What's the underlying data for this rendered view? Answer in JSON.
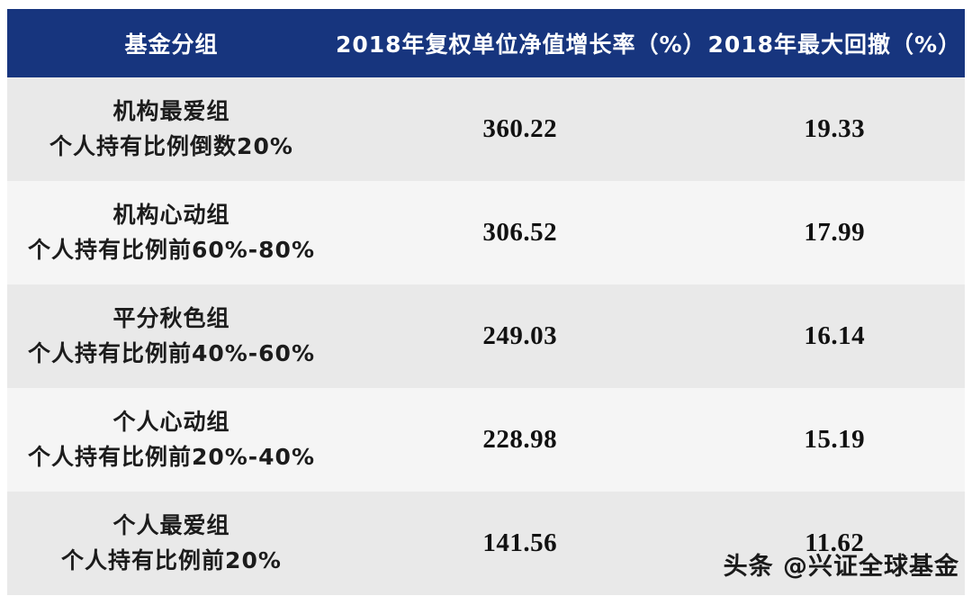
{
  "colors": {
    "header_bg": "#17357e",
    "header_text": "#ffffff",
    "row_odd_bg": "#e9e9e9",
    "row_even_bg": "#f5f5f5",
    "body_text": "#1c1c1c"
  },
  "chart_data": {
    "type": "table",
    "title": "",
    "columns": [
      "基金分组",
      "2018年复权单位净值增长率（%）",
      "2018年最大回撤（%）"
    ],
    "rows": [
      {
        "group": "机构最爱组",
        "desc": "个人持有比例倒数20%",
        "growth": 360.22,
        "drawdown": 19.33
      },
      {
        "group": "机构心动组",
        "desc": "个人持有比例前60%-80%",
        "growth": 306.52,
        "drawdown": 17.99
      },
      {
        "group": "平分秋色组",
        "desc": "个人持有比例前40%-60%",
        "growth": 249.03,
        "drawdown": 16.14
      },
      {
        "group": "个人心动组",
        "desc": "个人持有比例前20%-40%",
        "growth": 228.98,
        "drawdown": 15.19
      },
      {
        "group": "个人最爱组",
        "desc": "个人持有比例前20%",
        "growth": 141.56,
        "drawdown": 11.62
      }
    ]
  },
  "watermark": {
    "text": "头条 @兴证全球基金"
  }
}
